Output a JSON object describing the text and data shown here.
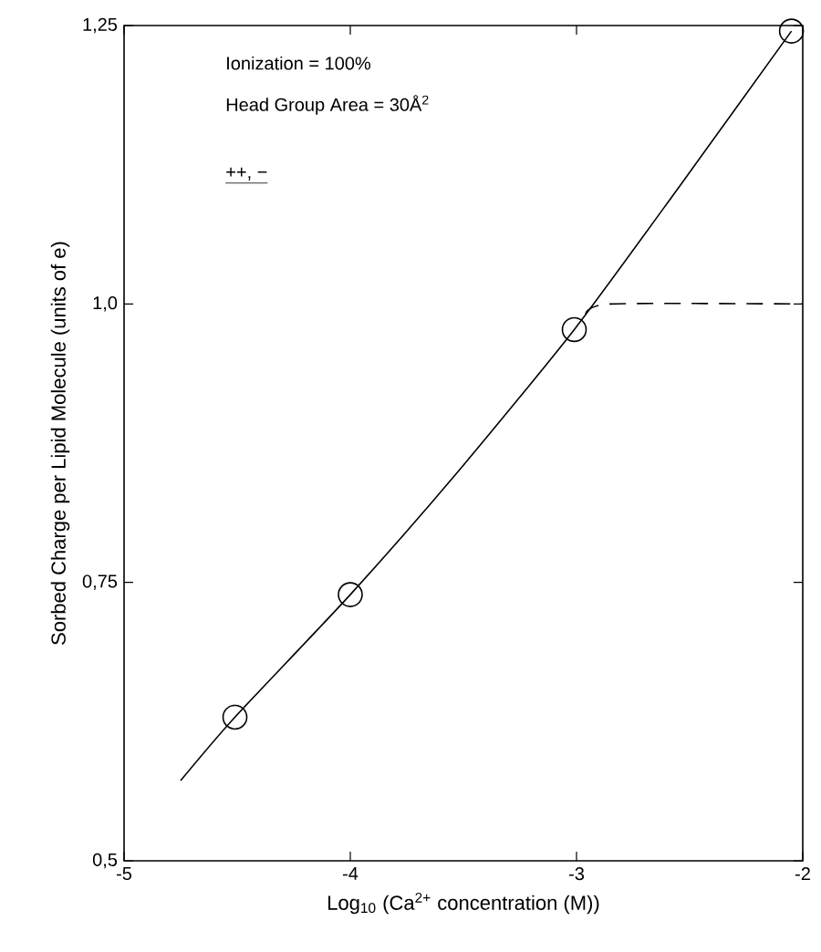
{
  "chart_data": {
    "type": "line",
    "xlabel": "Log$_{10}$ (Ca$^{2+}$ concentration (M))",
    "ylabel": "Sorbed Charge per Lipid Molecule (units of e)",
    "annotations": [
      "Ionization = 100%",
      "Head Group Area = 30Å$^{2}$",
      "++, −"
    ],
    "xlim": [
      -5,
      -2
    ],
    "ylim": [
      0.5,
      1.25
    ],
    "xticks": [
      -5,
      -4,
      -3,
      -2
    ],
    "yticks": [
      {
        "value": 0.5,
        "label": "0,5"
      },
      {
        "value": 0.75,
        "label": "0,75"
      },
      {
        "value": 1.0,
        "label": "1,0"
      },
      {
        "value": 1.25,
        "label": "1,25"
      }
    ],
    "grid": false,
    "series": [
      {
        "color": "#000000",
        "line_style": "solid",
        "marker": "none",
        "x": [
          -4.75,
          -4.51,
          -4.0,
          -3.53,
          -3.01,
          -2.54,
          -2.05
        ],
        "values": [
          0.572,
          0.629,
          0.739,
          0.848,
          0.977,
          1.107,
          1.245
        ]
      },
      {
        "color": "#000000",
        "line_style": "dashed",
        "marker": "none",
        "x": [
          -2.96,
          -2.85,
          -2.0
        ],
        "values": [
          0.991,
          1.0,
          1.0
        ]
      },
      {
        "type": "scatter",
        "color": "#000000",
        "marker": "circle",
        "x": [
          -4.51,
          -4.0,
          -3.01,
          -2.05
        ],
        "values": [
          0.629,
          0.739,
          0.977,
          1.245
        ]
      }
    ]
  }
}
